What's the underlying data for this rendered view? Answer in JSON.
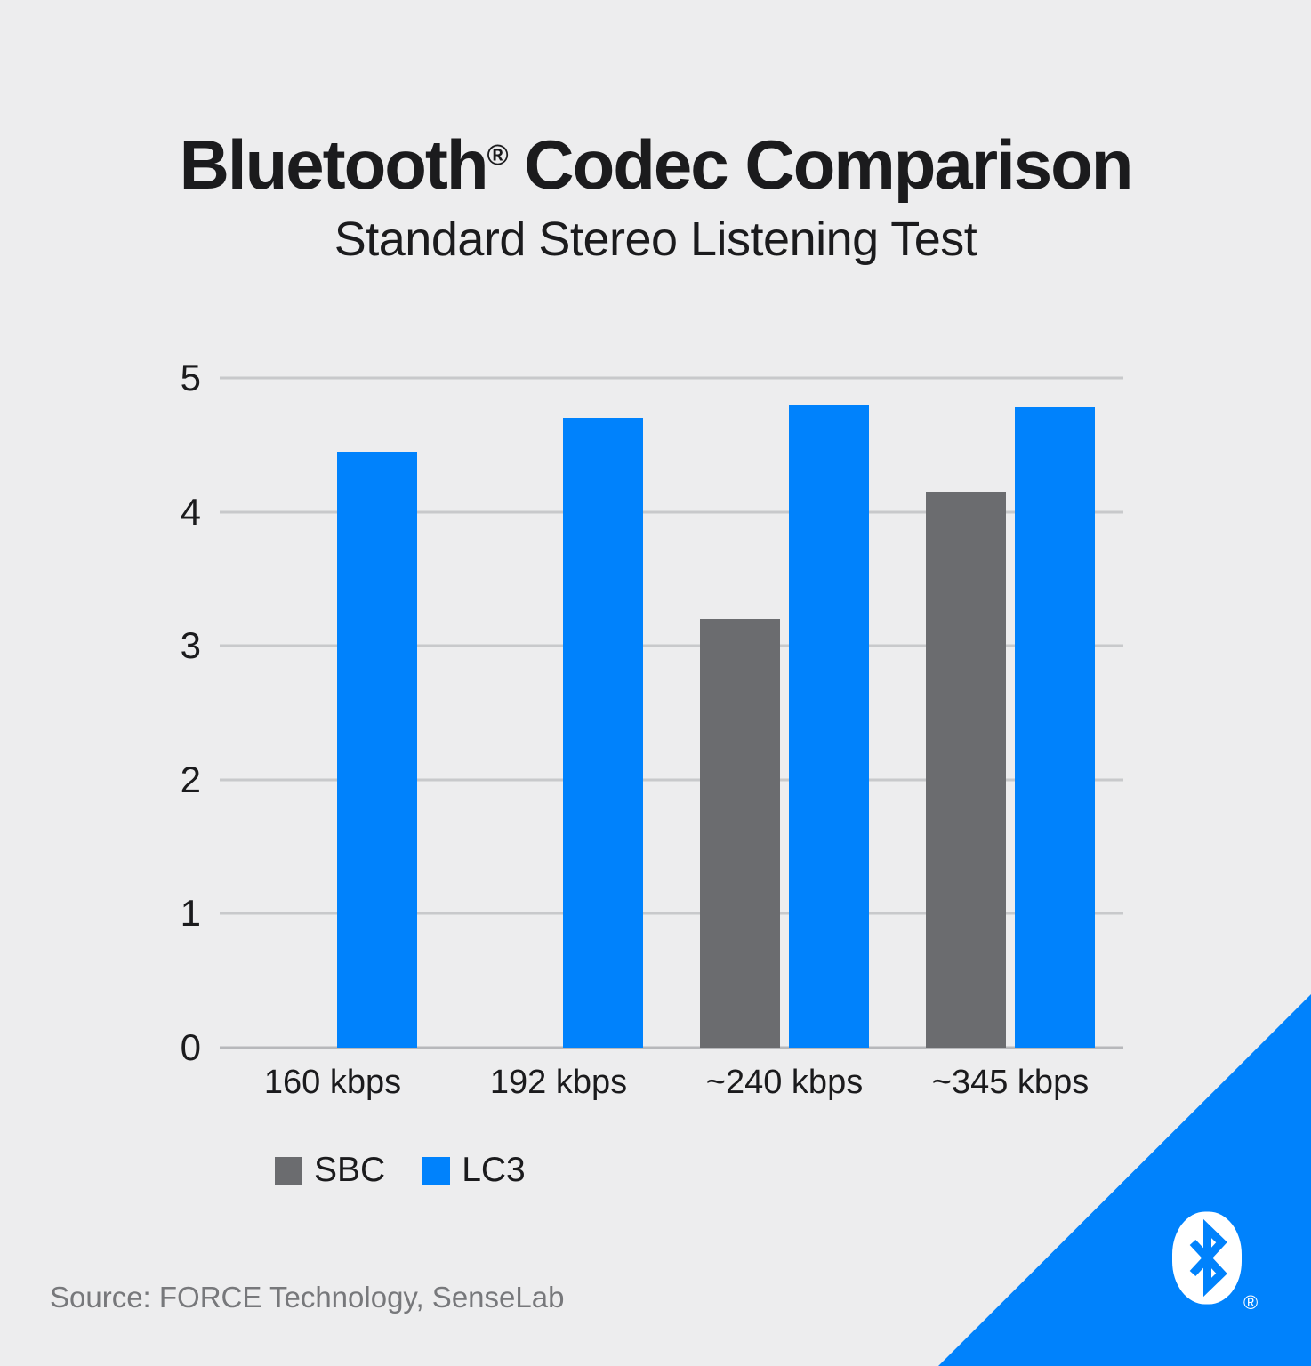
{
  "page": {
    "background": "#EDEDEE",
    "accent_blue": "#0082FC",
    "text_color": "#1B1B1D"
  },
  "header": {
    "title_prefix": "Bluetooth",
    "title_reg": "®",
    "title_rest": " Codec Comparison",
    "subtitle": "Standard Stereo Listening Test"
  },
  "chart_data": {
    "type": "bar",
    "title": "Bluetooth® Codec Comparison",
    "subtitle": "Standard Stereo Listening Test",
    "categories": [
      "160 kbps",
      "192 kbps",
      "~240 kbps",
      "~345 kbps"
    ],
    "series": [
      {
        "name": "SBC",
        "color": "#6B6C6F",
        "values": [
          null,
          null,
          3.2,
          4.15
        ]
      },
      {
        "name": "LC3",
        "color": "#0082FC",
        "values": [
          4.45,
          4.7,
          4.8,
          4.78
        ]
      }
    ],
    "xlabel": "",
    "ylabel": "",
    "ylim": [
      0,
      5
    ],
    "yticks": [
      5,
      4,
      3,
      2,
      1,
      0
    ],
    "grid": true,
    "gridline_color": "#C8C9CB",
    "legend_position": "bottom-left"
  },
  "footer": {
    "source": "Source: FORCE Technology, SenseLab"
  },
  "logo": {
    "name": "bluetooth-logo",
    "registered": "®"
  }
}
